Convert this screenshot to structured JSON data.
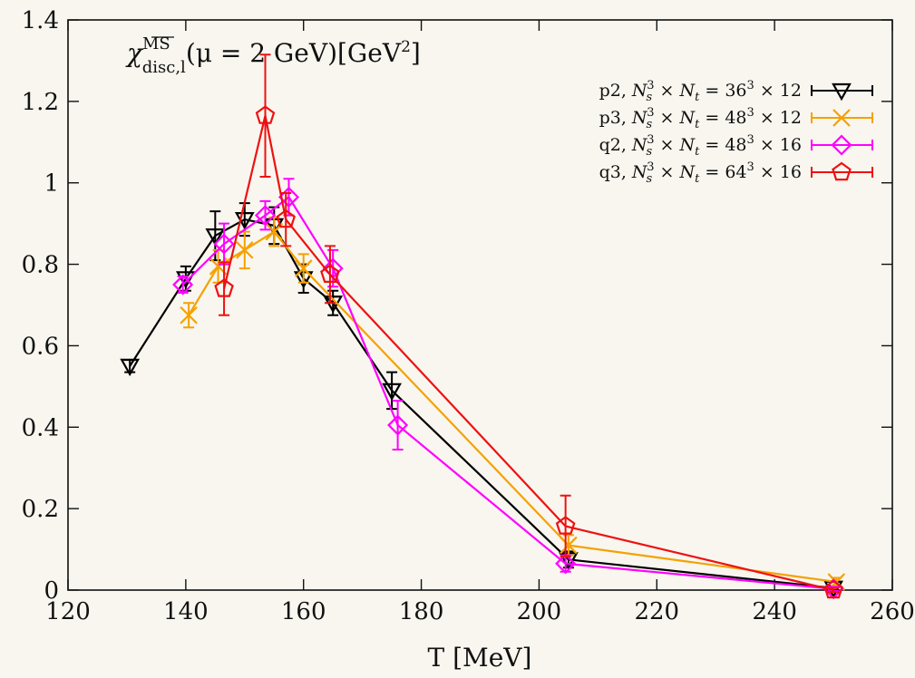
{
  "chart_data": {
    "type": "scatter",
    "annotation": {
      "symbol": "χ",
      "superscript": "MS",
      "subscript": "disc,l",
      "rest": "(μ = 2 GeV)[GeV",
      "rest_sup": "2",
      "rest_end": "]"
    },
    "xlabel": "T [MeV]",
    "ylabel": "",
    "xlim": [
      120,
      260
    ],
    "ylim": [
      0,
      1.4
    ],
    "xticks": [
      120,
      140,
      160,
      180,
      200,
      220,
      240,
      260
    ],
    "yticks": [
      0,
      0.2,
      0.4,
      0.6,
      0.8,
      1,
      1.2,
      1.4
    ],
    "grid": false,
    "legend_position": "top-right",
    "series": [
      {
        "name": "p2, N_s^3 × N_t = 36^3 × 12",
        "legend_parts": [
          "p2, ",
          "36",
          "12"
        ],
        "color": "#000000",
        "marker": "triangle-down",
        "points": [
          {
            "x": 130.5,
            "y": 0.55,
            "err": 0.015
          },
          {
            "x": 140,
            "y": 0.765,
            "err": 0.03
          },
          {
            "x": 145,
            "y": 0.87,
            "err": 0.06
          },
          {
            "x": 150,
            "y": 0.91,
            "err": 0.04
          },
          {
            "x": 155,
            "y": 0.895,
            "err": 0.045
          },
          {
            "x": 160,
            "y": 0.765,
            "err": 0.035
          },
          {
            "x": 165,
            "y": 0.705,
            "err": 0.03
          },
          {
            "x": 175,
            "y": 0.49,
            "err": 0.045
          },
          {
            "x": 205,
            "y": 0.075,
            "err": 0.02
          },
          {
            "x": 250,
            "y": 0.005,
            "err": 0.005
          }
        ]
      },
      {
        "name": "p3, N_s^3 × N_t = 48^3 × 12",
        "legend_parts": [
          "p3, ",
          "48",
          "12"
        ],
        "color": "#f5a100",
        "marker": "x",
        "points": [
          {
            "x": 140.5,
            "y": 0.675,
            "err": 0.03
          },
          {
            "x": 145.5,
            "y": 0.795,
            "err": 0.04
          },
          {
            "x": 150,
            "y": 0.835,
            "err": 0.045
          },
          {
            "x": 155,
            "y": 0.88,
            "err": 0.035
          },
          {
            "x": 160,
            "y": 0.79,
            "err": 0.035
          },
          {
            "x": 205,
            "y": 0.11,
            "err": 0.025
          },
          {
            "x": 250.5,
            "y": 0.02,
            "err": 0.01
          }
        ]
      },
      {
        "name": "q2, N_s^3 × N_t = 48^3 × 16",
        "legend_parts": [
          "q2, ",
          "48",
          "16"
        ],
        "color": "#ff00ff",
        "marker": "diamond",
        "points": [
          {
            "x": 139.5,
            "y": 0.75,
            "err": 0.02
          },
          {
            "x": 146.5,
            "y": 0.85,
            "err": 0.05
          },
          {
            "x": 153.5,
            "y": 0.92,
            "err": 0.035
          },
          {
            "x": 157.5,
            "y": 0.965,
            "err": 0.045
          },
          {
            "x": 165,
            "y": 0.79,
            "err": 0.045
          },
          {
            "x": 176,
            "y": 0.405,
            "err": 0.06
          },
          {
            "x": 204.5,
            "y": 0.065,
            "err": 0.02
          },
          {
            "x": 250,
            "y": 0.003,
            "err": 0.005
          }
        ]
      },
      {
        "name": "q3, N_s^3 × N_t = 64^3 × 16",
        "legend_parts": [
          "q3, ",
          "64",
          "16"
        ],
        "color": "#ee1111",
        "marker": "pentagon",
        "points": [
          {
            "x": 146.5,
            "y": 0.74,
            "err": 0.065
          },
          {
            "x": 153.5,
            "y": 1.165,
            "err": 0.15
          },
          {
            "x": 157,
            "y": 0.91,
            "err": 0.065
          },
          {
            "x": 164.5,
            "y": 0.775,
            "err": 0.07
          },
          {
            "x": 204.5,
            "y": 0.157,
            "err": 0.075
          },
          {
            "x": 250,
            "y": 0.0,
            "err": 0.005
          }
        ]
      }
    ]
  }
}
